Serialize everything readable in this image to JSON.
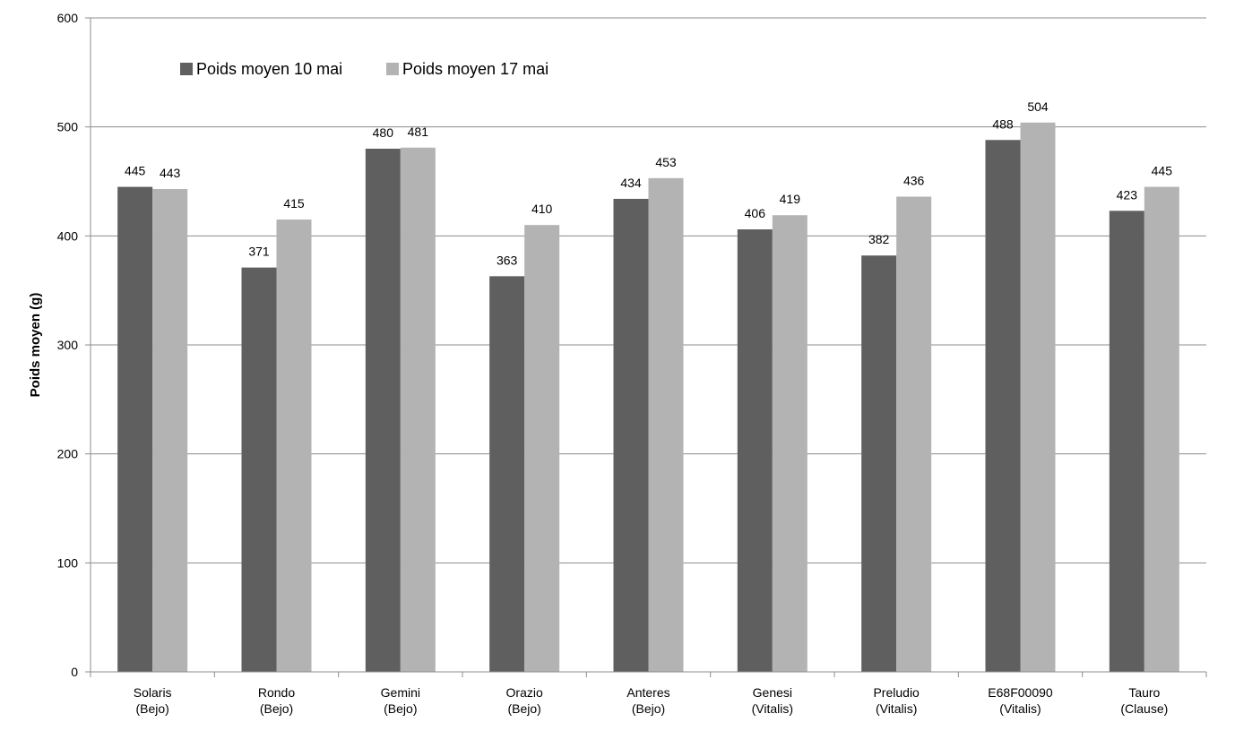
{
  "chart_data": {
    "type": "bar",
    "title": "",
    "xlabel": "",
    "ylabel": "Poids moyen (g)",
    "ylim": [
      0,
      600
    ],
    "yticks": [
      0,
      100,
      200,
      300,
      400,
      500,
      600
    ],
    "grid": true,
    "legend_position": "top-left",
    "categories": [
      [
        "Solaris",
        "(Bejo)"
      ],
      [
        "Rondo",
        "(Bejo)"
      ],
      [
        "Gemini",
        "(Bejo)"
      ],
      [
        "Orazio",
        "(Bejo)"
      ],
      [
        "Anteres",
        "(Bejo)"
      ],
      [
        "Genesi",
        "(Vitalis)"
      ],
      [
        "Preludio",
        "(Vitalis)"
      ],
      [
        "E68F00090",
        "(Vitalis)"
      ],
      [
        "Tauro",
        "(Clause)"
      ]
    ],
    "series": [
      {
        "name": "Poids moyen 10 mai",
        "color": "#5f5f5f",
        "values": [
          445,
          371,
          480,
          363,
          434,
          406,
          382,
          488,
          423
        ]
      },
      {
        "name": "Poids moyen 17 mai",
        "color": "#b3b3b3",
        "values": [
          443,
          415,
          481,
          410,
          453,
          419,
          436,
          504,
          445
        ]
      }
    ]
  }
}
